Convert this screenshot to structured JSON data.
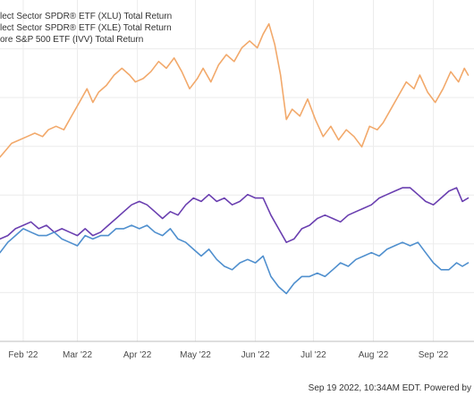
{
  "legend": [
    {
      "label": "lect Sector SPDR® ETF (XLU) Total Return",
      "color": "#4f8fce"
    },
    {
      "label": "lect Sector SPDR® ETF (XLE) Total Return",
      "color": "#f2a96b"
    },
    {
      "label": "ore S&P 500 ETF (IVV) Total Return",
      "color": "#6a3fb0"
    }
  ],
  "footer": {
    "text": "Sep 19 2022, 10:34AM EDT. Powered by"
  },
  "chart_data": {
    "type": "line",
    "title": "",
    "xlabel": "",
    "ylabel": "",
    "grid": true,
    "legend_position": "top-left",
    "x_tick_labels": [
      "Feb '22",
      "Mar '22",
      "Apr '22",
      "May '22",
      "Jun '22",
      "Jul '22",
      "Aug '22",
      "Sep '22"
    ],
    "x_ticks": [
      "2022-02-01",
      "2022-03-01",
      "2022-04-01",
      "2022-05-01",
      "2022-06-01",
      "2022-07-01",
      "2022-08-01",
      "2022-09-01"
    ],
    "xlim": [
      "2022-01-20",
      "2022-09-22"
    ],
    "ylim": [
      0,
      100
    ],
    "series": [
      {
        "name": "lect Sector SPDR® ETF (XLE) Total Return",
        "color": "#f2a96b",
        "points": [
          [
            "2022-01-20",
            54
          ],
          [
            "2022-01-23",
            56
          ],
          [
            "2022-01-26",
            58
          ],
          [
            "2022-01-30",
            59
          ],
          [
            "2022-02-03",
            60
          ],
          [
            "2022-02-07",
            61
          ],
          [
            "2022-02-11",
            60
          ],
          [
            "2022-02-14",
            62
          ],
          [
            "2022-02-18",
            63
          ],
          [
            "2022-02-22",
            62
          ],
          [
            "2022-02-26",
            66
          ],
          [
            "2022-03-02",
            70
          ],
          [
            "2022-03-06",
            74
          ],
          [
            "2022-03-09",
            70
          ],
          [
            "2022-03-12",
            73
          ],
          [
            "2022-03-16",
            75
          ],
          [
            "2022-03-20",
            78
          ],
          [
            "2022-03-24",
            80
          ],
          [
            "2022-03-28",
            78
          ],
          [
            "2022-03-31",
            76
          ],
          [
            "2022-04-04",
            77
          ],
          [
            "2022-04-08",
            79
          ],
          [
            "2022-04-12",
            82
          ],
          [
            "2022-04-16",
            80
          ],
          [
            "2022-04-20",
            83
          ],
          [
            "2022-04-24",
            79
          ],
          [
            "2022-04-28",
            74
          ],
          [
            "2022-05-02",
            77
          ],
          [
            "2022-05-05",
            80
          ],
          [
            "2022-05-09",
            76
          ],
          [
            "2022-05-13",
            81
          ],
          [
            "2022-05-17",
            84
          ],
          [
            "2022-05-21",
            82
          ],
          [
            "2022-05-25",
            86
          ],
          [
            "2022-05-29",
            88
          ],
          [
            "2022-06-02",
            86
          ],
          [
            "2022-06-05",
            90
          ],
          [
            "2022-06-08",
            93
          ],
          [
            "2022-06-11",
            87
          ],
          [
            "2022-06-14",
            78
          ],
          [
            "2022-06-17",
            65
          ],
          [
            "2022-06-20",
            68
          ],
          [
            "2022-06-24",
            66
          ],
          [
            "2022-06-28",
            71
          ],
          [
            "2022-07-02",
            65
          ],
          [
            "2022-07-06",
            60
          ],
          [
            "2022-07-10",
            63
          ],
          [
            "2022-07-14",
            59
          ],
          [
            "2022-07-18",
            62
          ],
          [
            "2022-07-22",
            60
          ],
          [
            "2022-07-26",
            57
          ],
          [
            "2022-07-30",
            63
          ],
          [
            "2022-08-03",
            62
          ],
          [
            "2022-08-06",
            64
          ],
          [
            "2022-08-10",
            68
          ],
          [
            "2022-08-14",
            72
          ],
          [
            "2022-08-18",
            76
          ],
          [
            "2022-08-22",
            74
          ],
          [
            "2022-08-25",
            78
          ],
          [
            "2022-08-29",
            73
          ],
          [
            "2022-09-02",
            70
          ],
          [
            "2022-09-06",
            74
          ],
          [
            "2022-09-10",
            79
          ],
          [
            "2022-09-14",
            76
          ],
          [
            "2022-09-17",
            80
          ],
          [
            "2022-09-19",
            78
          ]
        ]
      },
      {
        "name": "ore S&P 500 ETF (IVV) Total Return",
        "color": "#6a3fb0",
        "points": [
          [
            "2022-01-20",
            30
          ],
          [
            "2022-01-24",
            31
          ],
          [
            "2022-01-28",
            33
          ],
          [
            "2022-02-01",
            34
          ],
          [
            "2022-02-05",
            35
          ],
          [
            "2022-02-09",
            33
          ],
          [
            "2022-02-13",
            34
          ],
          [
            "2022-02-17",
            32
          ],
          [
            "2022-02-21",
            33
          ],
          [
            "2022-02-25",
            32
          ],
          [
            "2022-03-01",
            31
          ],
          [
            "2022-03-05",
            33
          ],
          [
            "2022-03-09",
            31
          ],
          [
            "2022-03-13",
            32
          ],
          [
            "2022-03-17",
            34
          ],
          [
            "2022-03-21",
            36
          ],
          [
            "2022-03-25",
            38
          ],
          [
            "2022-03-29",
            40
          ],
          [
            "2022-04-02",
            41
          ],
          [
            "2022-04-06",
            40
          ],
          [
            "2022-04-10",
            38
          ],
          [
            "2022-04-14",
            36
          ],
          [
            "2022-04-18",
            38
          ],
          [
            "2022-04-22",
            37
          ],
          [
            "2022-04-26",
            40
          ],
          [
            "2022-04-30",
            42
          ],
          [
            "2022-05-04",
            41
          ],
          [
            "2022-05-08",
            43
          ],
          [
            "2022-05-12",
            41
          ],
          [
            "2022-05-16",
            42
          ],
          [
            "2022-05-20",
            40
          ],
          [
            "2022-05-24",
            41
          ],
          [
            "2022-05-28",
            43
          ],
          [
            "2022-06-01",
            42
          ],
          [
            "2022-06-05",
            42
          ],
          [
            "2022-06-09",
            37
          ],
          [
            "2022-06-13",
            33
          ],
          [
            "2022-06-17",
            29
          ],
          [
            "2022-06-21",
            30
          ],
          [
            "2022-06-25",
            33
          ],
          [
            "2022-06-29",
            34
          ],
          [
            "2022-07-03",
            36
          ],
          [
            "2022-07-07",
            37
          ],
          [
            "2022-07-11",
            36
          ],
          [
            "2022-07-15",
            35
          ],
          [
            "2022-07-19",
            37
          ],
          [
            "2022-07-23",
            38
          ],
          [
            "2022-07-27",
            39
          ],
          [
            "2022-07-31",
            40
          ],
          [
            "2022-08-04",
            42
          ],
          [
            "2022-08-08",
            43
          ],
          [
            "2022-08-12",
            44
          ],
          [
            "2022-08-16",
            45
          ],
          [
            "2022-08-20",
            45
          ],
          [
            "2022-08-24",
            43
          ],
          [
            "2022-08-28",
            41
          ],
          [
            "2022-09-01",
            40
          ],
          [
            "2022-09-05",
            42
          ],
          [
            "2022-09-09",
            44
          ],
          [
            "2022-09-13",
            45
          ],
          [
            "2022-09-16",
            41
          ],
          [
            "2022-09-19",
            42
          ]
        ]
      },
      {
        "name": "lect Sector SPDR® ETF (XLU) Total Return",
        "color": "#4f8fce",
        "points": [
          [
            "2022-01-20",
            26
          ],
          [
            "2022-01-24",
            29
          ],
          [
            "2022-01-28",
            31
          ],
          [
            "2022-02-01",
            33
          ],
          [
            "2022-02-05",
            32
          ],
          [
            "2022-02-09",
            31
          ],
          [
            "2022-02-13",
            31
          ],
          [
            "2022-02-17",
            32
          ],
          [
            "2022-02-21",
            30
          ],
          [
            "2022-02-25",
            29
          ],
          [
            "2022-03-01",
            28
          ],
          [
            "2022-03-05",
            31
          ],
          [
            "2022-03-09",
            30
          ],
          [
            "2022-03-13",
            31
          ],
          [
            "2022-03-17",
            31
          ],
          [
            "2022-03-21",
            33
          ],
          [
            "2022-03-25",
            33
          ],
          [
            "2022-03-29",
            34
          ],
          [
            "2022-04-02",
            33
          ],
          [
            "2022-04-06",
            34
          ],
          [
            "2022-04-10",
            32
          ],
          [
            "2022-04-14",
            31
          ],
          [
            "2022-04-18",
            33
          ],
          [
            "2022-04-22",
            30
          ],
          [
            "2022-04-26",
            29
          ],
          [
            "2022-04-30",
            27
          ],
          [
            "2022-05-04",
            25
          ],
          [
            "2022-05-08",
            27
          ],
          [
            "2022-05-12",
            24
          ],
          [
            "2022-05-16",
            22
          ],
          [
            "2022-05-20",
            21
          ],
          [
            "2022-05-24",
            23
          ],
          [
            "2022-05-28",
            24
          ],
          [
            "2022-06-01",
            23
          ],
          [
            "2022-06-05",
            25
          ],
          [
            "2022-06-09",
            19
          ],
          [
            "2022-06-13",
            16
          ],
          [
            "2022-06-17",
            14
          ],
          [
            "2022-06-21",
            17
          ],
          [
            "2022-06-25",
            19
          ],
          [
            "2022-06-29",
            19
          ],
          [
            "2022-07-03",
            20
          ],
          [
            "2022-07-07",
            19
          ],
          [
            "2022-07-11",
            21
          ],
          [
            "2022-07-15",
            23
          ],
          [
            "2022-07-19",
            22
          ],
          [
            "2022-07-23",
            24
          ],
          [
            "2022-07-27",
            25
          ],
          [
            "2022-07-31",
            26
          ],
          [
            "2022-08-04",
            25
          ],
          [
            "2022-08-08",
            27
          ],
          [
            "2022-08-12",
            28
          ],
          [
            "2022-08-16",
            29
          ],
          [
            "2022-08-20",
            28
          ],
          [
            "2022-08-24",
            29
          ],
          [
            "2022-08-28",
            26
          ],
          [
            "2022-09-01",
            23
          ],
          [
            "2022-09-05",
            21
          ],
          [
            "2022-09-09",
            21
          ],
          [
            "2022-09-13",
            23
          ],
          [
            "2022-09-16",
            22
          ],
          [
            "2022-09-19",
            23
          ]
        ]
      }
    ]
  }
}
